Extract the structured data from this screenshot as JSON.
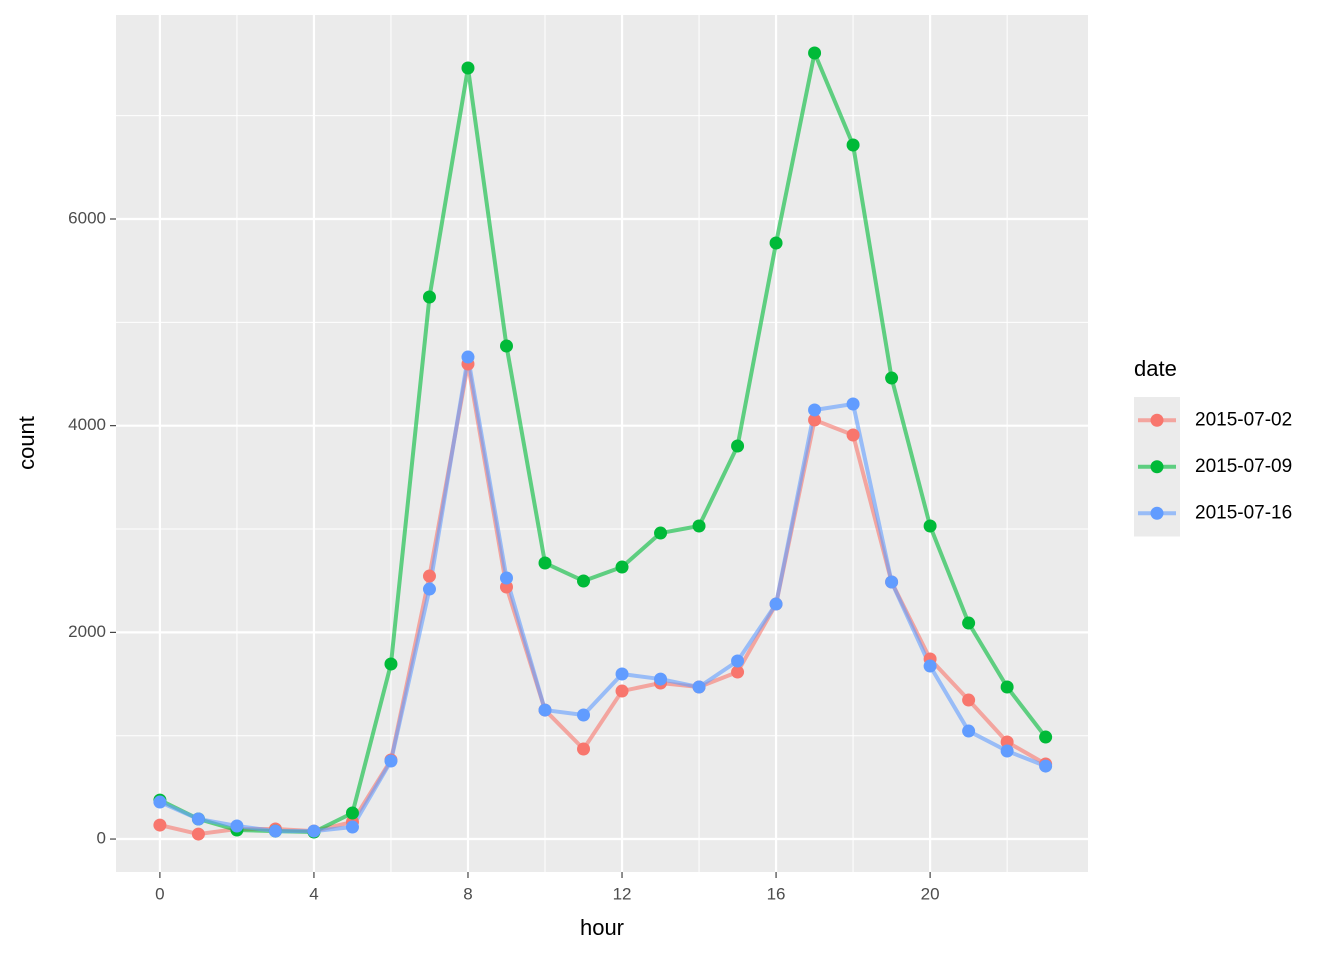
{
  "chart_data": {
    "type": "line",
    "x_label": "hour",
    "y_label": "count",
    "legend_title": "date",
    "legend_position": "right",
    "grid": true,
    "x": [
      0,
      1,
      2,
      3,
      4,
      5,
      6,
      7,
      8,
      9,
      10,
      11,
      12,
      13,
      14,
      15,
      16,
      17,
      18,
      19,
      20,
      21,
      22,
      23
    ],
    "series": [
      {
        "name": "2015-07-02",
        "color": "#F8766D",
        "values": [
          135,
          48,
          97,
          97,
          77,
          165,
          765,
          2545,
          4597,
          2439,
          1248,
          871,
          1432,
          1510,
          1471,
          1616,
          2274,
          4055,
          3910,
          2487,
          1742,
          1345,
          939,
          726
        ]
      },
      {
        "name": "2015-07-09",
        "color": "#00BA38",
        "values": [
          377,
          194,
          87,
          77,
          68,
          252,
          1694,
          5245,
          7461,
          4771,
          2671,
          2497,
          2632,
          2961,
          3029,
          3803,
          5768,
          7606,
          6716,
          4461,
          3029,
          2090,
          1471,
          987
        ]
      },
      {
        "name": "2015-07-16",
        "color": "#619CFF",
        "values": [
          358,
          194,
          126,
          77,
          77,
          116,
          755,
          2419,
          4664,
          2526,
          1248,
          1200,
          1597,
          1548,
          1471,
          1723,
          2274,
          4152,
          4210,
          2487,
          1674,
          1045,
          852,
          706
        ]
      }
    ],
    "xlim": [
      -1.14,
      24.1
    ],
    "xticks": [
      0,
      4,
      8,
      12,
      16,
      20
    ],
    "ylim": [
      -319,
      7974
    ],
    "yticks": [
      0,
      2000,
      4000,
      6000
    ]
  }
}
